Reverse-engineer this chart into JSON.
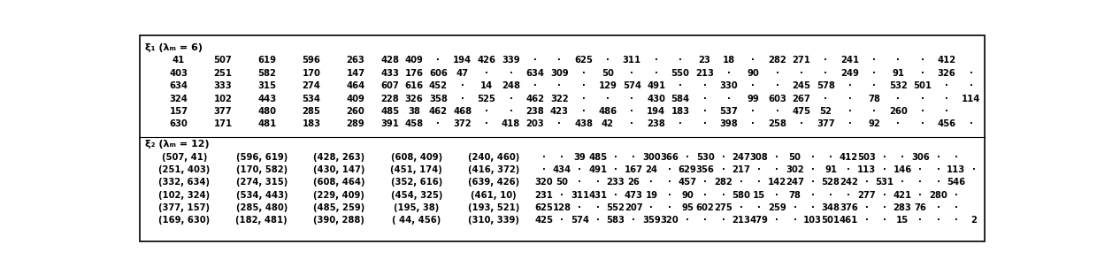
{
  "section1_header": "ξ₁ (λₘ = 6)",
  "section2_header": "ξ₂ (λₘ = 12)",
  "s1_rows": [
    [
      "41",
      "507",
      "619",
      "596",
      "263",
      "428",
      "409",
      "·",
      "194",
      "426",
      "339",
      "·",
      "·",
      "625",
      "·",
      "311",
      "·",
      "·",
      "23",
      "18",
      "·",
      "282",
      "271",
      "·",
      "241",
      "·",
      "·",
      "·",
      "412"
    ],
    [
      "403",
      "251",
      "582",
      "170",
      "147",
      "433",
      "176",
      "606",
      "47",
      "·",
      "·",
      "634",
      "309",
      "·",
      "50",
      "·",
      "·",
      "550",
      "213",
      "·",
      "90",
      "·",
      "·",
      "·",
      "249",
      "·",
      "91",
      "·",
      "326",
      "·"
    ],
    [
      "634",
      "333",
      "315",
      "274",
      "464",
      "607",
      "616",
      "452",
      "·",
      "14",
      "248",
      "·",
      "·",
      "·",
      "129",
      "574",
      "491",
      "·",
      "·",
      "330",
      "·",
      "·",
      "245",
      "578",
      "·",
      "·",
      "532",
      "501",
      "·",
      "·"
    ],
    [
      "324",
      "102",
      "443",
      "534",
      "409",
      "228",
      "326",
      "358",
      "·",
      "525",
      "·",
      "462",
      "322",
      "·",
      "·",
      "·",
      "430",
      "584",
      "·",
      "·",
      "99",
      "603",
      "267",
      "·",
      "·",
      "78",
      "·",
      "·",
      "·",
      "114"
    ],
    [
      "157",
      "377",
      "480",
      "285",
      "260",
      "485",
      "38",
      "462",
      "468",
      "·",
      "·",
      "238",
      "423",
      "·",
      "486",
      "·",
      "194",
      "183",
      "·",
      "537",
      "·",
      "·",
      "475",
      "52",
      "·",
      "·",
      "260",
      "·",
      "·"
    ],
    [
      "630",
      "171",
      "481",
      "183",
      "289",
      "391",
      "458",
      "·",
      "372",
      "·",
      "418",
      "203",
      "·",
      "438",
      "42",
      "·",
      "238",
      "·",
      "·",
      "398",
      "·",
      "258",
      "·",
      "377",
      "·",
      "92",
      "·",
      "·",
      "456",
      "·"
    ]
  ],
  "s2_pairs": [
    [
      "(507, 41)",
      "(596, 619)",
      "(428, 263)",
      "(608, 409)",
      "(240, 460)"
    ],
    [
      "(251, 403)",
      "(170, 582)",
      "(430, 147)",
      "(451, 174)",
      "(416, 372)"
    ],
    [
      "(332, 634)",
      "(274, 315)",
      "(608, 464)",
      "(352, 616)",
      "(639, 426)"
    ],
    [
      "(102, 324)",
      "(534, 443)",
      "(229, 409)",
      "(454, 325)",
      "(461, 10)"
    ],
    [
      "(377, 157)",
      "(285, 480)",
      "(485, 259)",
      "(195, 38)",
      "(193, 521)"
    ],
    [
      "(169, 630)",
      "(182, 481)",
      "(390, 288)",
      "( 44, 456)",
      "(310, 339)"
    ]
  ],
  "s2_tail": [
    [
      "·",
      "·",
      "39",
      "485",
      "·",
      "·",
      "300",
      "366",
      "·",
      "530",
      "·",
      "247",
      "308",
      "·",
      "50",
      "·",
      "·",
      "412",
      "503",
      "·",
      "·",
      "306",
      "·",
      "·"
    ],
    [
      "·",
      "434",
      "·",
      "491",
      "·",
      "167",
      "24",
      "·",
      "629",
      "356",
      "·",
      "217",
      "·",
      "·",
      "302",
      "·",
      "91",
      "·",
      "113",
      "·",
      "146",
      "·",
      "·",
      "113",
      "·"
    ],
    [
      "320",
      "50",
      "·",
      "·",
      "233",
      "26",
      "·",
      "·",
      "457",
      "·",
      "282",
      "·",
      "·",
      "142",
      "247",
      "·",
      "528",
      "242",
      "·",
      "531",
      "·",
      "·",
      "·",
      "546"
    ],
    [
      "231",
      "·",
      "311",
      "431",
      "·",
      "473",
      "19",
      "·",
      "90",
      "·",
      "·",
      "580",
      "15",
      "·",
      "78",
      "·",
      "·",
      "·",
      "277",
      "·",
      "421",
      "·",
      "280",
      "·"
    ],
    [
      "625",
      "128",
      "·",
      "·",
      "552",
      "207",
      "·",
      "·",
      "95",
      "602",
      "275",
      "·",
      "·",
      "259",
      "·",
      "·",
      "348",
      "376",
      "·",
      "·",
      "283",
      "76",
      "·",
      "·"
    ],
    [
      "425",
      "·",
      "574",
      "·",
      "583",
      "·",
      "359",
      "320",
      "·",
      "·",
      "·",
      "213",
      "479",
      "·",
      "·",
      "103",
      "501",
      "461",
      "·",
      "·",
      "15",
      "·",
      "·",
      "·",
      "2"
    ]
  ],
  "bg_color": "#ffffff",
  "text_color": "#000000",
  "font_size": 7.2,
  "header_font_size": 8.0
}
